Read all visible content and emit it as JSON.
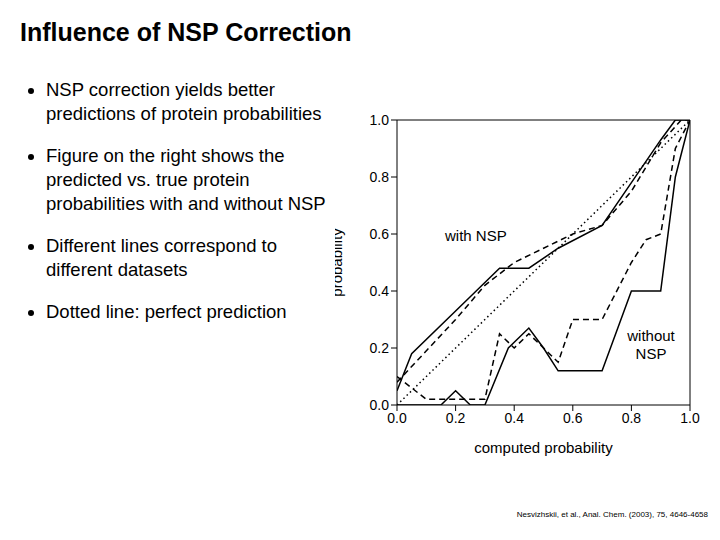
{
  "title": "Influence of NSP Correction",
  "bullets": [
    "NSP correction yields better predictions of protein probabilities",
    "Figure on the right shows the predicted vs. true protein probabilities with and without NSP",
    "Different lines correspond to different datasets",
    "Dotted line: perfect prediction"
  ],
  "citation": "Nesvizhskii, et al., Anal. Chem. (2003), 75, 4646-4658",
  "chart_data": {
    "type": "line",
    "x_label": "computed probability",
    "y_label": "probability",
    "annotations": [
      "with NSP",
      "without NSP"
    ],
    "xlim": [
      0,
      1
    ],
    "ylim": [
      0,
      1
    ],
    "xticks": [
      {
        "value": 0,
        "label": "0.0"
      },
      {
        "value": 0.2,
        "label": "0.2"
      },
      {
        "value": 0.4,
        "label": "0.4"
      },
      {
        "value": 0.6,
        "label": "0.6"
      },
      {
        "value": 0.8,
        "label": "0.8"
      },
      {
        "value": 1,
        "label": "1.0"
      }
    ],
    "yticks": [
      {
        "value": 0,
        "label": "0.0"
      },
      {
        "value": 0.2,
        "label": "0.2"
      },
      {
        "value": 0.4,
        "label": "0.4"
      },
      {
        "value": 0.6,
        "label": "0.6"
      },
      {
        "value": 0.8,
        "label": "0.8"
      },
      {
        "value": 1,
        "label": "1.0"
      }
    ],
    "grid": false,
    "series": [
      {
        "color": "#000000",
        "line_style": "solid",
        "x": [
          0,
          0.05,
          0.25,
          0.35,
          0.45,
          0.55,
          0.7,
          0.8,
          0.9,
          0.95,
          1
        ],
        "values": [
          0.05,
          0.18,
          0.38,
          0.48,
          0.48,
          0.55,
          0.63,
          0.78,
          0.93,
          1,
          1
        ]
      },
      {
        "color": "#000000",
        "line_style": "dashed",
        "x": [
          0,
          0.2,
          0.3,
          0.4,
          0.5,
          0.6,
          0.7,
          0.8,
          0.9,
          0.97,
          1
        ],
        "values": [
          0.08,
          0.3,
          0.42,
          0.5,
          0.55,
          0.6,
          0.63,
          0.75,
          0.92,
          1,
          1
        ]
      },
      {
        "color": "#000000",
        "line_style": "solid",
        "x": [
          0,
          0.15,
          0.2,
          0.25,
          0.3,
          0.38,
          0.45,
          0.5,
          0.55,
          0.7,
          0.8,
          0.9,
          0.95,
          1
        ],
        "values": [
          0,
          0,
          0.05,
          0,
          0,
          0.2,
          0.27,
          0.2,
          0.12,
          0.12,
          0.4,
          0.4,
          0.8,
          1
        ]
      },
      {
        "color": "#000000",
        "line_style": "dashed",
        "x": [
          0,
          0.1,
          0.2,
          0.3,
          0.35,
          0.4,
          0.45,
          0.55,
          0.6,
          0.7,
          0.8,
          0.85,
          0.9,
          0.95,
          1
        ],
        "values": [
          0.1,
          0.02,
          0.02,
          0.02,
          0.25,
          0.2,
          0.25,
          0.15,
          0.3,
          0.3,
          0.5,
          0.58,
          0.6,
          0.9,
          1
        ]
      },
      {
        "color": "#000000",
        "line_style": "dotted",
        "x": [
          0,
          1
        ],
        "values": [
          0,
          1
        ]
      }
    ]
  }
}
